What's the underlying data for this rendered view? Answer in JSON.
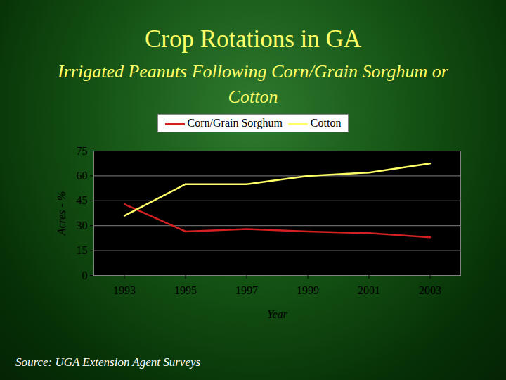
{
  "chart_data": {
    "type": "line",
    "title": "Crop Rotations in GA",
    "subtitle": "Irrigated Peanuts Following Corn/Grain Sorghum or Cotton",
    "x_label": "Year",
    "y_label": "Acres - %",
    "source": "Source: UGA Extension Agent Surveys",
    "x": [
      1993,
      1995,
      1997,
      1999,
      2001,
      2003
    ],
    "series": [
      {
        "name": "Corn/Grain Sorghum",
        "color": "#d42020",
        "values": [
          43,
          26.5,
          28,
          26.5,
          25.5,
          23
        ]
      },
      {
        "name": "Cotton",
        "color": "#ffff66",
        "values": [
          36,
          55,
          55,
          60,
          62,
          67.5
        ]
      }
    ],
    "xlim": [
      1992,
      2004
    ],
    "ylim": [
      0,
      75
    ],
    "xticks": [
      1993,
      1995,
      1997,
      1999,
      2001,
      2003
    ],
    "yticks": [
      0,
      15,
      30,
      45,
      60,
      75
    ],
    "grid": true,
    "legend": "top"
  }
}
